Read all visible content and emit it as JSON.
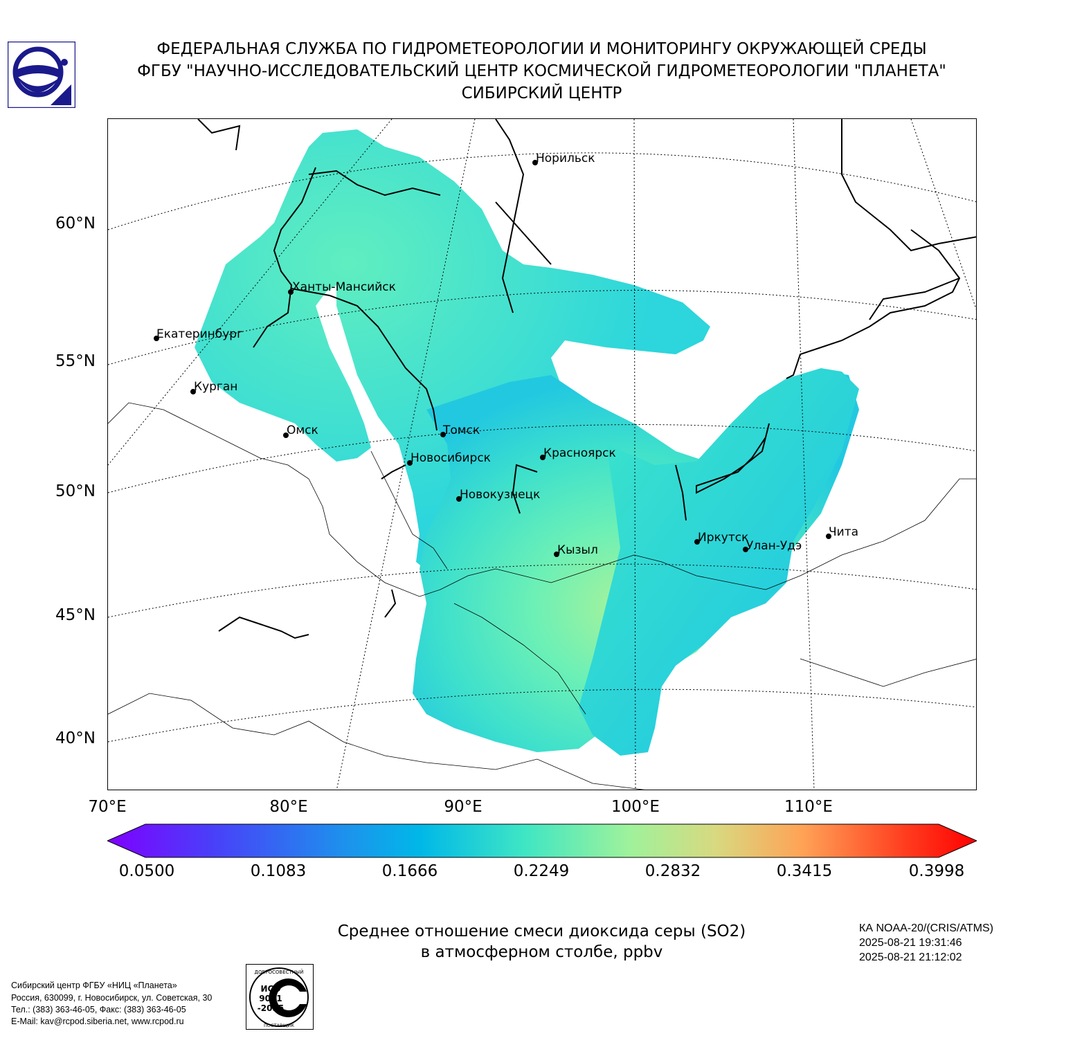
{
  "header": {
    "line1": "ФЕДЕРАЛЬНАЯ СЛУЖБА ПО ГИДРОМЕТЕОРОЛОГИИ И МОНИТОРИНГУ ОКРУЖАЮЩЕЙ СРЕДЫ",
    "line2": "ФГБУ \"НАУЧНО-ИССЛЕДОВАТЕЛЬСКИЙ ЦЕНТР КОСМИЧЕСКОЙ ГИДРОМЕТЕОРОЛОГИИ \"ПЛАНЕТА\"",
    "line3": "СИБИРСКИЙ ЦЕНТР"
  },
  "map": {
    "lat_labels": [
      "60°N",
      "55°N",
      "50°N",
      "45°N",
      "40°N"
    ],
    "lon_labels": [
      "70°E",
      "80°E",
      "90°E",
      "100°E",
      "110°E"
    ],
    "cities": {
      "norilsk": "Норильск",
      "khanty": "Ханты-Мансийск",
      "ekb": "Екатеринбург",
      "kurgan": "Курган",
      "omsk": "Омск",
      "tomsk": "Томск",
      "novosibirsk": "Новосибирск",
      "krasnoyarsk": "Красноярск",
      "novokuznetsk": "Новокузнецк",
      "kyzyl": "Кызыл",
      "irkutsk": "Иркутск",
      "ulanude": "Улан-Удэ",
      "chita": "Чита"
    }
  },
  "colorbar": {
    "ticks": [
      "0.0500",
      "0.1083",
      "0.1666",
      "0.2249",
      "0.2832",
      "0.3415",
      "0.3998"
    ],
    "colors": [
      "#7f00ff",
      "#3f51f7",
      "#00aeef",
      "#3ee6c4",
      "#9ef29b",
      "#d8d980",
      "#ffa256",
      "#ff3b1e",
      "#ff0000"
    ]
  },
  "caption": {
    "line1": "Среднее отношение смеси диоксида серы (SO2)",
    "line2": "в атмосферном столбе, ppbv"
  },
  "satellite": {
    "name": "КА NOAA-20/(CRIS/ATMS)",
    "time1": "2025-08-21 19:31:46",
    "time2": "2025-08-21 21:12:02"
  },
  "footer": {
    "org": "Сибирский центр ФГБУ «НИЦ «Планета»",
    "address": "Россия, 630099, г. Новосибирск, ул. Советская, 30",
    "phone": "Тел.: (383) 363-46-05, Факс: (383) 363-46-05",
    "email": "E-Mail: kav@rcpod.siberia.net, www.rcpod.ru"
  },
  "iso": {
    "top": "ДОБРОСОВЕСТНЫЙ",
    "l1": "ИСО",
    "l2": "9001",
    "l3": "-2015",
    "bottom": "ПОСТАВЩИК"
  }
}
